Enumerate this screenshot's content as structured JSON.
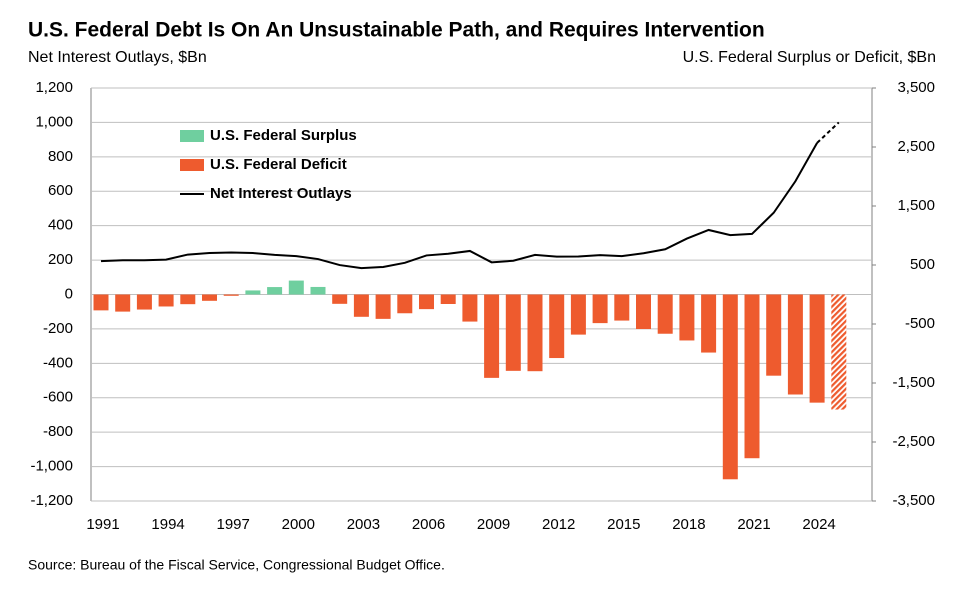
{
  "chart_data": {
    "type": "bar_line",
    "title": "U.S. Federal Debt Is On An Unsustainable Path, and Requires Intervention",
    "y_label": "Net Interest Outlays, $Bn",
    "y2_label": "U.S. Federal Surplus or Deficit, $Bn",
    "source": "Source: Bureau of the Fiscal Service, Congressional Budget Office.",
    "categories": [
      "1991",
      null,
      null,
      "1994",
      null,
      null,
      "1997",
      null,
      null,
      "2000",
      null,
      null,
      "2003",
      null,
      null,
      "2006",
      null,
      null,
      "2009",
      null,
      null,
      "2012",
      null,
      null,
      "2015",
      null,
      null,
      "2018",
      null,
      null,
      "2021",
      null,
      null,
      "2024",
      null
    ],
    "ylim": [
      -1200,
      1200
    ],
    "yticks": [
      {
        "value": -1200,
        "label": "-1,200"
      },
      {
        "value": -1000,
        "label": "-1,000"
      },
      -800,
      -600,
      -400,
      -200,
      0,
      200,
      400,
      600,
      800,
      {
        "value": 1000,
        "label": "1,000"
      },
      {
        "value": 1200,
        "label": "1,200"
      }
    ],
    "y2lim": [
      -3500,
      3500
    ],
    "y2ticks": [
      {
        "value": -3500,
        "label": "-3,500"
      },
      {
        "value": -2500,
        "label": "-2,500"
      },
      {
        "value": -1500,
        "label": "-1,500"
      },
      -500,
      500,
      {
        "value": 1500,
        "label": "1,500"
      },
      {
        "value": 2500,
        "label": "2,500"
      },
      {
        "value": 3500,
        "label": "3,500"
      }
    ],
    "grid": true,
    "legend": "upper left",
    "series": [
      {
        "name": "U.S. Federal Surplus",
        "type": "bar",
        "axis": "y2",
        "color": "#6fcf9f",
        "values": [
          null,
          null,
          null,
          null,
          null,
          null,
          null,
          69,
          126,
          236,
          128,
          null,
          null,
          null,
          null,
          null,
          null,
          null,
          null,
          null,
          null,
          null,
          null,
          null,
          null,
          null,
          null,
          null,
          null,
          null,
          null,
          null,
          null,
          null,
          null
        ]
      },
      {
        "name": "U.S. Federal Deficit",
        "type": "bar",
        "axis": "y2",
        "color": "#ee5b2e",
        "last_point_projected": true,
        "values": [
          -269,
          -290,
          -255,
          -203,
          -164,
          -107,
          -22,
          null,
          null,
          null,
          null,
          -158,
          -378,
          -413,
          -318,
          -248,
          -161,
          -459,
          -1413,
          -1294,
          -1300,
          -1077,
          -680,
          -485,
          -442,
          -585,
          -665,
          -779,
          -984,
          -3132,
          -2775,
          -1376,
          -1695,
          -1833,
          -1950
        ]
      },
      {
        "name": "Net Interest Outlays",
        "type": "line",
        "color": "#000000",
        "last_point_projected": true,
        "values": [
          194,
          199,
          199,
          203,
          232,
          241,
          244,
          241,
          230,
          223,
          206,
          171,
          153,
          160,
          184,
          227,
          237,
          253,
          187,
          196,
          230,
          220,
          221,
          229,
          223,
          240,
          263,
          325,
          375,
          345,
          352,
          475,
          658,
          881,
          1000
        ]
      }
    ]
  }
}
